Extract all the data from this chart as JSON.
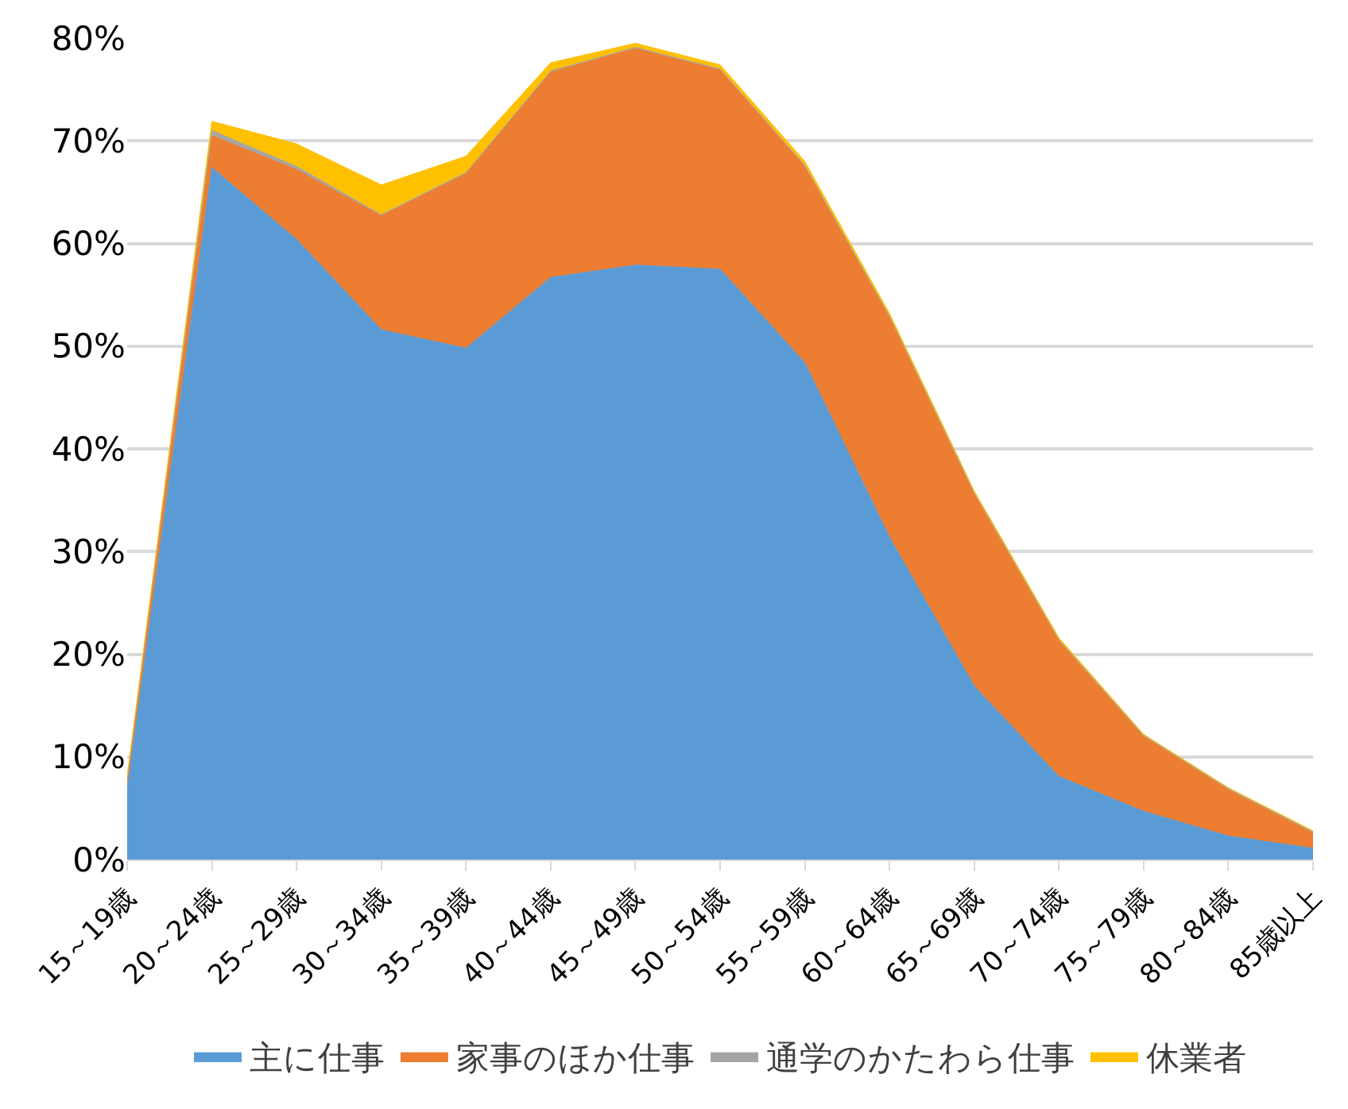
{
  "chart_data": {
    "type": "area",
    "stacked": true,
    "categories": [
      "15～19歳",
      "20～24歳",
      "25～29歳",
      "30～34歳",
      "35～39歳",
      "40～44歳",
      "45～49歳",
      "50～54歳",
      "55～59歳",
      "60～64歳",
      "65～69歳",
      "70～74歳",
      "75～79歳",
      "80～84歳",
      "85歳以上"
    ],
    "series": [
      {
        "name": "主に仕事",
        "color": "#5b9bd5",
        "values": [
          6.8,
          67.4,
          60.4,
          51.6,
          49.8,
          56.7,
          57.9,
          57.5,
          48.4,
          31.4,
          16.9,
          8.1,
          4.7,
          2.3,
          1.1
        ]
      },
      {
        "name": "家事のほか仕事",
        "color": "#ed7d31",
        "values": [
          0.8,
          3.1,
          6.8,
          11.1,
          17.0,
          20.0,
          21.1,
          19.4,
          19.1,
          21.4,
          18.7,
          13.2,
          7.3,
          4.5,
          1.5
        ]
      },
      {
        "name": "通学のかたわら仕事",
        "color": "#a5a5a5",
        "values": [
          0.3,
          0.5,
          0.3,
          0.1,
          0.1,
          0.1,
          0.1,
          0.1,
          0.1,
          0.1,
          0.1,
          0.1,
          0.1,
          0.1,
          0.1
        ]
      },
      {
        "name": "休業者",
        "color": "#ffc000",
        "values": [
          0.2,
          0.9,
          2.2,
          2.9,
          1.6,
          0.8,
          0.4,
          0.4,
          0.4,
          0.3,
          0.2,
          0.2,
          0.1,
          0.1,
          0.1
        ]
      }
    ],
    "ylim": [
      0,
      80
    ],
    "yticks": [
      {
        "value": 0,
        "label": "0%"
      },
      {
        "value": 10,
        "label": "10%"
      },
      {
        "value": 20,
        "label": "20%"
      },
      {
        "value": 30,
        "label": "30%"
      },
      {
        "value": 40,
        "label": "40%"
      },
      {
        "value": 50,
        "label": "50%"
      },
      {
        "value": 60,
        "label": "60%"
      },
      {
        "value": 70,
        "label": "70%"
      },
      {
        "value": 80,
        "label": "80%"
      }
    ],
    "grid": "y",
    "legend": "bottom"
  }
}
